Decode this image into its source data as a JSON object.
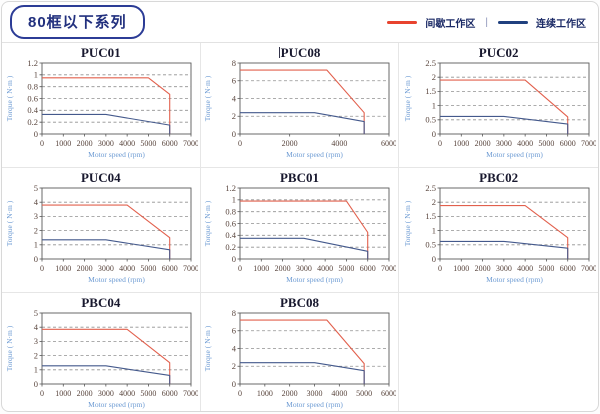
{
  "page": {
    "badge_label": "80框以下系列"
  },
  "legend": {
    "items": [
      {
        "label": "间歇工作区",
        "color": "#e8432e"
      },
      {
        "label": "连续工作区",
        "color": "#20407f"
      }
    ],
    "separator": "|"
  },
  "colors": {
    "intermittent_line": "#e2604d",
    "continuous_line": "#44598c",
    "gridline": "#909090",
    "plot_border": "#5a5a5a"
  },
  "chart_data": [
    {
      "type": "line",
      "title": "PUC01",
      "caret": false,
      "xlabel": "Motor speed (rpm)",
      "ylabel": "Torque ( N·m )",
      "xlim": [
        0,
        7000
      ],
      "ylim": [
        0,
        1.2
      ],
      "xticks": [
        0,
        1000,
        2000,
        3000,
        4000,
        5000,
        6000,
        7000
      ],
      "yticks": [
        0,
        0.2,
        0.4,
        0.6,
        0.8,
        1,
        1.2
      ],
      "series": [
        {
          "name": "间歇工作区",
          "color": "#e2604d",
          "points": [
            [
              0,
              0.95
            ],
            [
              5000,
              0.95
            ],
            [
              6000,
              0.67
            ],
            [
              6000,
              0
            ]
          ]
        },
        {
          "name": "连续工作区",
          "color": "#44598c",
          "points": [
            [
              0,
              0.33
            ],
            [
              3000,
              0.33
            ],
            [
              6000,
              0.15
            ],
            [
              6000,
              0
            ]
          ]
        }
      ]
    },
    {
      "type": "line",
      "title": "PUC08",
      "caret": true,
      "xlabel": "Motor speed (rpm)",
      "ylabel": "Torque ( N·m )",
      "xlim": [
        0,
        6000
      ],
      "ylim": [
        0,
        8
      ],
      "xticks": [
        0,
        2000,
        4000,
        6000
      ],
      "yticks": [
        0,
        2,
        4,
        6,
        8
      ],
      "series": [
        {
          "name": "间歇工作区",
          "color": "#e2604d",
          "points": [
            [
              0,
              7.2
            ],
            [
              3500,
              7.2
            ],
            [
              5000,
              2.4
            ],
            [
              5000,
              0
            ]
          ]
        },
        {
          "name": "连续工作区",
          "color": "#44598c",
          "points": [
            [
              0,
              2.4
            ],
            [
              3000,
              2.4
            ],
            [
              5000,
              1.4
            ],
            [
              5000,
              0
            ]
          ]
        }
      ]
    },
    {
      "type": "line",
      "title": "PUC02",
      "caret": false,
      "xlabel": "Motor speed (rpm)",
      "ylabel": "Torque ( N·m )",
      "xlim": [
        0,
        7000
      ],
      "ylim": [
        0,
        2.5
      ],
      "xticks": [
        0,
        1000,
        2000,
        3000,
        4000,
        5000,
        6000,
        7000
      ],
      "yticks": [
        0,
        0.5,
        1,
        1.5,
        2,
        2.5
      ],
      "series": [
        {
          "name": "间歇工作区",
          "color": "#e2604d",
          "points": [
            [
              0,
              1.9
            ],
            [
              4000,
              1.9
            ],
            [
              6000,
              0.6
            ],
            [
              6000,
              0
            ]
          ]
        },
        {
          "name": "连续工作区",
          "color": "#44598c",
          "points": [
            [
              0,
              0.62
            ],
            [
              3000,
              0.62
            ],
            [
              6000,
              0.35
            ],
            [
              6000,
              0
            ]
          ]
        }
      ]
    },
    {
      "type": "line",
      "title": "PUC04",
      "caret": false,
      "xlabel": "Motor speed (rpm)",
      "ylabel": "Torque ( N·m )",
      "xlim": [
        0,
        7000
      ],
      "ylim": [
        0,
        5
      ],
      "xticks": [
        0,
        1000,
        2000,
        3000,
        4000,
        5000,
        6000,
        7000
      ],
      "yticks": [
        0,
        1,
        2,
        3,
        4,
        5
      ],
      "series": [
        {
          "name": "间歇工作区",
          "color": "#e2604d",
          "points": [
            [
              0,
              3.8
            ],
            [
              4000,
              3.8
            ],
            [
              6000,
              1.5
            ],
            [
              6000,
              0
            ]
          ]
        },
        {
          "name": "连续工作区",
          "color": "#44598c",
          "points": [
            [
              0,
              1.35
            ],
            [
              3000,
              1.35
            ],
            [
              6000,
              0.65
            ],
            [
              6000,
              0
            ]
          ]
        }
      ]
    },
    {
      "type": "line",
      "title": "PBC01",
      "caret": false,
      "xlabel": "Motor speed (rpm)",
      "ylabel": "Torque ( N·m )",
      "xlim": [
        0,
        7000
      ],
      "ylim": [
        0,
        1.2
      ],
      "xticks": [
        0,
        1000,
        2000,
        3000,
        4000,
        5000,
        6000,
        7000
      ],
      "yticks": [
        0,
        0.2,
        0.4,
        0.6,
        0.8,
        1,
        1.2
      ],
      "series": [
        {
          "name": "间歇工作区",
          "color": "#e2604d",
          "points": [
            [
              0,
              0.98
            ],
            [
              5000,
              0.98
            ],
            [
              6000,
              0.45
            ],
            [
              6000,
              0
            ]
          ]
        },
        {
          "name": "连续工作区",
          "color": "#44598c",
          "points": [
            [
              0,
              0.35
            ],
            [
              3000,
              0.35
            ],
            [
              6000,
              0.13
            ],
            [
              6000,
              0
            ]
          ]
        }
      ]
    },
    {
      "type": "line",
      "title": "PBC02",
      "caret": false,
      "xlabel": "Motor speed (rpm)",
      "ylabel": "Torque ( N·m )",
      "xlim": [
        0,
        7000
      ],
      "ylim": [
        0,
        2.5
      ],
      "xticks": [
        0,
        1000,
        2000,
        3000,
        4000,
        5000,
        6000,
        7000
      ],
      "yticks": [
        0,
        0.5,
        1,
        1.5,
        2,
        2.5
      ],
      "series": [
        {
          "name": "间歇工作区",
          "color": "#e2604d",
          "points": [
            [
              0,
              1.88
            ],
            [
              4000,
              1.88
            ],
            [
              6000,
              0.75
            ],
            [
              6000,
              0
            ]
          ]
        },
        {
          "name": "连续工作区",
          "color": "#44598c",
          "points": [
            [
              0,
              0.62
            ],
            [
              3000,
              0.62
            ],
            [
              6000,
              0.38
            ],
            [
              6000,
              0
            ]
          ]
        }
      ]
    },
    {
      "type": "line",
      "title": "PBC04",
      "caret": false,
      "xlabel": "Motor speed (rpm)",
      "ylabel": "Torque ( N·m )",
      "xlim": [
        0,
        7000
      ],
      "ylim": [
        0,
        5
      ],
      "xticks": [
        0,
        1000,
        2000,
        3000,
        4000,
        5000,
        6000,
        7000
      ],
      "yticks": [
        0,
        1,
        2,
        3,
        4,
        5
      ],
      "series": [
        {
          "name": "间歇工作区",
          "color": "#e2604d",
          "points": [
            [
              0,
              3.85
            ],
            [
              4000,
              3.85
            ],
            [
              6000,
              1.5
            ],
            [
              6000,
              0
            ]
          ]
        },
        {
          "name": "连续工作区",
          "color": "#44598c",
          "points": [
            [
              0,
              1.28
            ],
            [
              3000,
              1.28
            ],
            [
              6000,
              0.6
            ],
            [
              6000,
              0
            ]
          ]
        }
      ]
    },
    {
      "type": "line",
      "title": "PBC08",
      "caret": false,
      "xlabel": "Motor speed (rpm)",
      "ylabel": "Torque ( N·m )",
      "xlim": [
        0,
        6000
      ],
      "ylim": [
        0,
        8
      ],
      "xticks": [
        0,
        1000,
        2000,
        3000,
        4000,
        5000,
        6000
      ],
      "yticks": [
        0,
        2,
        4,
        6,
        8
      ],
      "series": [
        {
          "name": "间歇工作区",
          "color": "#e2604d",
          "points": [
            [
              0,
              7.2
            ],
            [
              3500,
              7.2
            ],
            [
              5000,
              2.3
            ],
            [
              5000,
              0
            ]
          ]
        },
        {
          "name": "连续工作区",
          "color": "#44598c",
          "points": [
            [
              0,
              2.4
            ],
            [
              3000,
              2.4
            ],
            [
              5000,
              1.5
            ],
            [
              5000,
              0
            ]
          ]
        }
      ]
    }
  ]
}
